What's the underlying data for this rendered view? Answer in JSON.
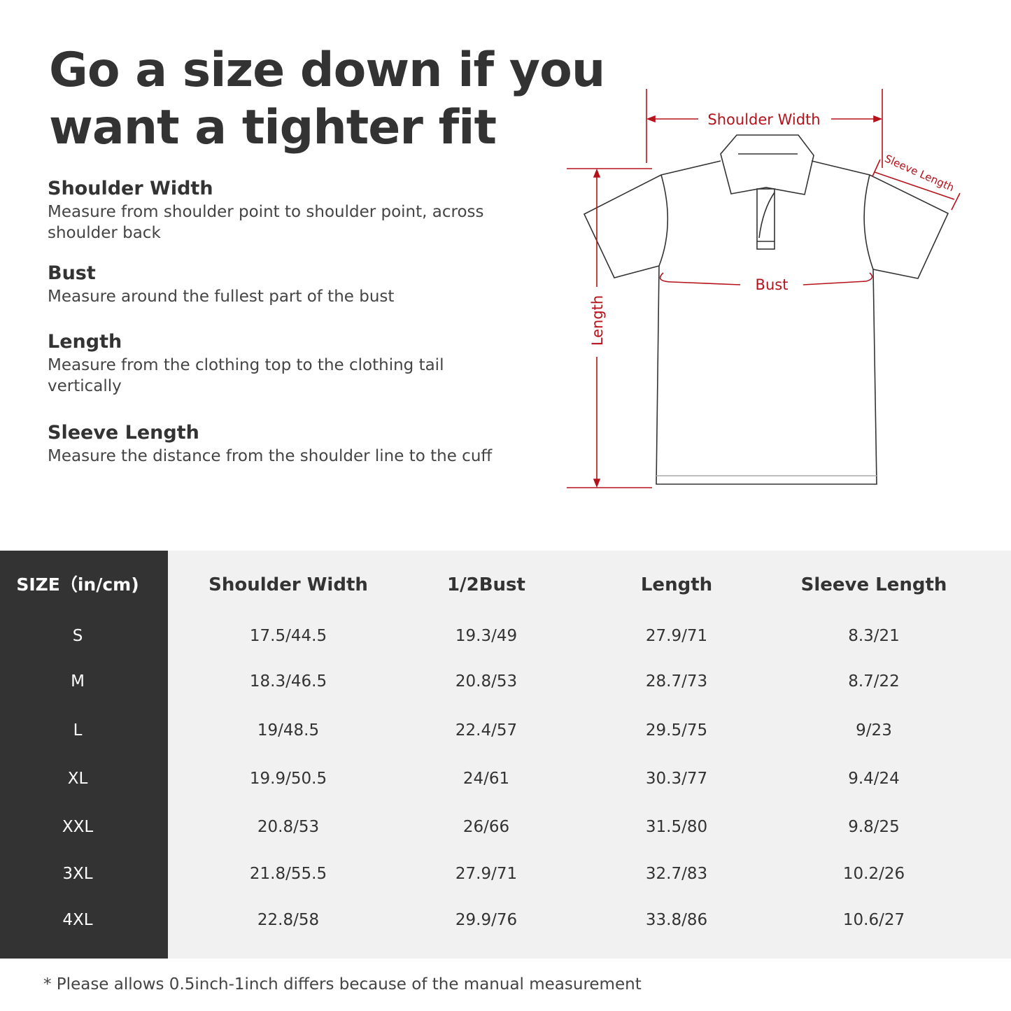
{
  "title_lines": [
    "Go a size down if you",
    "want a tighter fit"
  ],
  "sections": [
    {
      "heading": "Shoulder Width",
      "text": "Measure from shoulder point to shoulder point, across shoulder back"
    },
    {
      "heading": "Bust",
      "text": "Measure around the fullest part of the bust"
    },
    {
      "heading": "Length",
      "text": "Measure from the clothing top to the clothing tail vertically"
    },
    {
      "heading": "Sleeve Length",
      "text": "Measure the distance from the shoulder line to the cuff"
    }
  ],
  "diagram": {
    "labels": {
      "shoulder": "Shoulder Width",
      "bust": "Bust",
      "length": "Length",
      "sleeve": "Sleeve Length"
    },
    "accent_color": "#b5121b"
  },
  "table": {
    "size_header": "SIZE（in/cm)",
    "headers": [
      "Shoulder Width",
      "1/2Bust",
      "Length",
      "Sleeve Length"
    ],
    "rows": [
      {
        "size": "S",
        "values": [
          "17.5/44.5",
          "19.3/49",
          "27.9/71",
          "8.3/21"
        ]
      },
      {
        "size": "M",
        "values": [
          "18.3/46.5",
          "20.8/53",
          "28.7/73",
          "8.7/22"
        ]
      },
      {
        "size": "L",
        "values": [
          "19/48.5",
          "22.4/57",
          "29.5/75",
          "9/23"
        ]
      },
      {
        "size": "XL",
        "values": [
          "19.9/50.5",
          "24/61",
          "30.3/77",
          "9.4/24"
        ]
      },
      {
        "size": "XXL",
        "values": [
          "20.8/53",
          "26/66",
          "31.5/80",
          "9.8/25"
        ]
      },
      {
        "size": "3XL",
        "values": [
          "21.8/55.5",
          "27.9/71",
          "32.7/83",
          "10.2/26"
        ]
      },
      {
        "size": "4XL",
        "values": [
          "22.8/58",
          "29.9/76",
          "33.8/86",
          "10.6/27"
        ]
      }
    ]
  },
  "note": "* Please allows 0.5inch-1inch differs because of the  manual measurement"
}
